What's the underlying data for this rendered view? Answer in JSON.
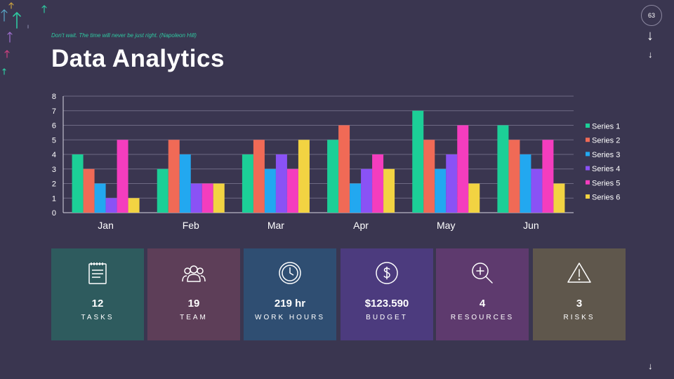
{
  "header": {
    "quote": "Don't wait. The time will never be just right. (Napoleon Hill)",
    "title": "Data Analytics",
    "page_number": "63"
  },
  "nav": {
    "arrow_glyph": "↓"
  },
  "chart_data": {
    "type": "bar",
    "title": "",
    "xlabel": "",
    "ylabel": "",
    "categories": [
      "Jan",
      "Feb",
      "Mar",
      "Apr",
      "May",
      "Jun"
    ],
    "ylim": [
      0,
      8
    ],
    "yticks": [
      0,
      1,
      2,
      3,
      4,
      5,
      6,
      7,
      8
    ],
    "grid": true,
    "legend_position": "right",
    "series": [
      {
        "name": "Series 1",
        "color": "#1ccf97",
        "values": [
          4,
          3,
          4,
          5,
          7,
          6
        ]
      },
      {
        "name": "Series 2",
        "color": "#f06a56",
        "values": [
          3,
          5,
          5,
          6,
          5,
          5
        ]
      },
      {
        "name": "Series 3",
        "color": "#22a8f0",
        "values": [
          2,
          4,
          3,
          2,
          3,
          4
        ]
      },
      {
        "name": "Series 4",
        "color": "#8a52f5",
        "values": [
          1,
          2,
          4,
          3,
          4,
          3
        ]
      },
      {
        "name": "Series 5",
        "color": "#f43dbe",
        "values": [
          5,
          2,
          3,
          4,
          6,
          5
        ]
      },
      {
        "name": "Series 6",
        "color": "#f2d342",
        "values": [
          1,
          2,
          5,
          3,
          2,
          2
        ]
      }
    ]
  },
  "cards": [
    {
      "value": "12",
      "label": "TASKS",
      "icon": "notepad-icon",
      "color": "#2e5b5e"
    },
    {
      "value": "19",
      "label": "TEAM",
      "icon": "team-icon",
      "color": "#5d3e58"
    },
    {
      "value": "219 hr",
      "label": "WORK HOURS",
      "icon": "clock-icon",
      "color": "#2f4e72"
    },
    {
      "value": "$123.590",
      "label": "BUDGET",
      "icon": "dollar-icon",
      "color": "#4c3b7e"
    },
    {
      "value": "4",
      "label": "RESOURCES",
      "icon": "zoom-in-icon",
      "color": "#5e3a6e"
    },
    {
      "value": "3",
      "label": "RISKS",
      "icon": "warning-icon",
      "color": "#5f574c"
    }
  ]
}
